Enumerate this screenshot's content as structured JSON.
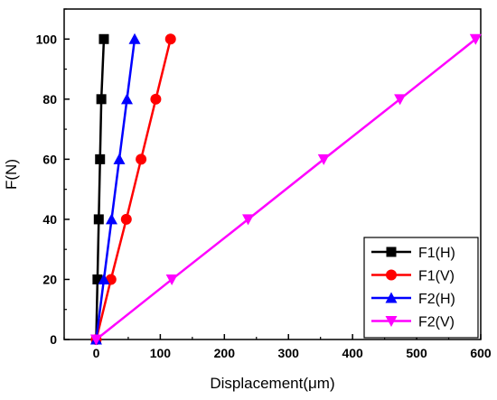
{
  "chart_data": {
    "type": "line",
    "xlabel": "Displacement(μm)",
    "ylabel": "F(N)",
    "xlim": [
      -50,
      600
    ],
    "ylim": [
      0,
      110
    ],
    "xticks": [
      0,
      100,
      200,
      300,
      400,
      500,
      600
    ],
    "xtick_labels": [
      "0",
      "100",
      "200",
      "300",
      "400",
      "500",
      "600"
    ],
    "yticks": [
      0,
      20,
      40,
      60,
      80,
      100
    ],
    "ytick_labels": [
      "0",
      "20",
      "40",
      "60",
      "80",
      "100"
    ],
    "grid": false,
    "legend_position": "bottom-right",
    "series": [
      {
        "name": "F1(H)",
        "color": "#000000",
        "marker": "square",
        "x": [
          0,
          2,
          4,
          6,
          8,
          12
        ],
        "y": [
          0,
          20,
          40,
          60,
          80,
          100
        ]
      },
      {
        "name": "F1(V)",
        "color": "#ff0000",
        "marker": "circle",
        "x": [
          0,
          23,
          47,
          70,
          93,
          116
        ],
        "y": [
          0,
          20,
          40,
          60,
          80,
          100
        ]
      },
      {
        "name": "F2(H)",
        "color": "#0000ff",
        "marker": "triangle-up",
        "x": [
          0,
          12,
          24,
          36,
          48,
          60
        ],
        "y": [
          0,
          20,
          40,
          60,
          80,
          100
        ]
      },
      {
        "name": "F2(V)",
        "color": "#ff00ff",
        "marker": "triangle-down",
        "x": [
          0,
          118,
          237,
          355,
          474,
          592
        ],
        "y": [
          0,
          20,
          40,
          60,
          80,
          100
        ]
      }
    ]
  }
}
